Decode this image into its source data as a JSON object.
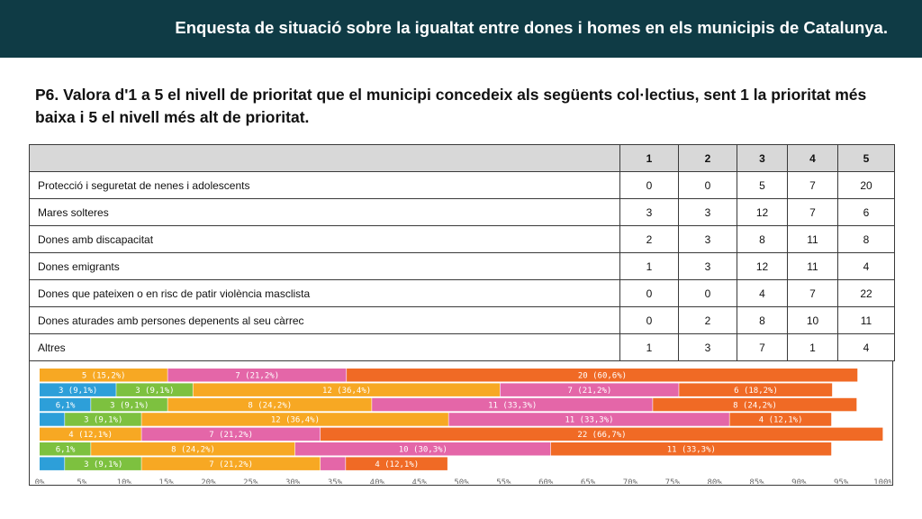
{
  "header": {
    "title": "Enquesta de situació sobre la  igualtat entre dones i homes en els municipis de Catalunya."
  },
  "question": "P6. Valora d'1 a 5 el nivell de prioritat que el municipi concedeix als següents col·lectius, sent 1 la prioritat més baixa i 5 el nivell més alt de prioritat.",
  "table": {
    "columns": [
      "1",
      "2",
      "3",
      "4",
      "5"
    ],
    "rows": [
      {
        "label": "Protecció i seguretat de nenes i adolescents",
        "values": [
          "0",
          "0",
          "5",
          "7",
          "20"
        ]
      },
      {
        "label": "Mares solteres",
        "values": [
          "3",
          "3",
          "12",
          "7",
          "6"
        ]
      },
      {
        "label": "Dones amb discapacitat",
        "values": [
          "2",
          "3",
          "8",
          "11",
          "8"
        ]
      },
      {
        "label": "Dones emigrants",
        "values": [
          "1",
          "3",
          "12",
          "11",
          "4"
        ]
      },
      {
        "label": "Dones que pateixen o en risc de patir violència masclista",
        "values": [
          "0",
          "0",
          "4",
          "7",
          "22"
        ]
      },
      {
        "label": "Dones aturades amb persones depenents al seu càrrec",
        "values": [
          "0",
          "2",
          "8",
          "10",
          "11"
        ]
      },
      {
        "label": "Altres",
        "values": [
          "1",
          "3",
          "7",
          "1",
          "4"
        ]
      }
    ]
  },
  "chart_data": {
    "type": "bar",
    "orientation": "horizontal",
    "stacked": "percent",
    "xlim": [
      0,
      100
    ],
    "x_ticks": [
      "0%",
      "5%",
      "10%",
      "15%",
      "20%",
      "25%",
      "30%",
      "35%",
      "40%",
      "45%",
      "50%",
      "55%",
      "60%",
      "65%",
      "70%",
      "75%",
      "80%",
      "85%",
      "90%",
      "95%",
      "100%"
    ],
    "colors": [
      "#2d9fd9",
      "#7dc13f",
      "#f7a823",
      "#e466a8",
      "#f06a25"
    ],
    "bars": [
      {
        "segments": [
          {
            "value": 15.2,
            "label": "5 (15,2%)"
          },
          {
            "value": 21.2,
            "label": "7 (21,2%)"
          },
          {
            "value": 60.6,
            "label": "20 (60,6%)"
          }
        ],
        "colors": [
          "#f7a823",
          "#e466a8",
          "#f06a25"
        ]
      },
      {
        "segments": [
          {
            "value": 9.1,
            "label": "3 (9,1%)"
          },
          {
            "value": 9.1,
            "label": "3 (9,1%)"
          },
          {
            "value": 36.4,
            "label": "12 (36,4%)"
          },
          {
            "value": 21.2,
            "label": "7 (21,2%)"
          },
          {
            "value": 18.2,
            "label": "6 (18,2%)"
          }
        ],
        "colors": [
          "#2d9fd9",
          "#7dc13f",
          "#f7a823",
          "#e466a8",
          "#f06a25"
        ]
      },
      {
        "segments": [
          {
            "value": 6.1,
            "label": "6,1%"
          },
          {
            "value": 9.1,
            "label": "3 (9,1%)"
          },
          {
            "value": 24.2,
            "label": "8 (24,2%)"
          },
          {
            "value": 33.3,
            "label": "11 (33,3%)"
          },
          {
            "value": 24.2,
            "label": "8 (24,2%)"
          }
        ],
        "colors": [
          "#2d9fd9",
          "#7dc13f",
          "#f7a823",
          "#e466a8",
          "#f06a25"
        ]
      },
      {
        "segments": [
          {
            "value": 3.0,
            "label": ""
          },
          {
            "value": 9.1,
            "label": "3 (9,1%)"
          },
          {
            "value": 36.4,
            "label": "12 (36,4%)"
          },
          {
            "value": 33.3,
            "label": "11 (33,3%)"
          },
          {
            "value": 12.1,
            "label": "4 (12,1%)"
          }
        ],
        "colors": [
          "#2d9fd9",
          "#7dc13f",
          "#f7a823",
          "#e466a8",
          "#f06a25"
        ]
      },
      {
        "segments": [
          {
            "value": 12.1,
            "label": "4 (12,1%)"
          },
          {
            "value": 21.2,
            "label": "7 (21,2%)"
          },
          {
            "value": 66.7,
            "label": "22 (66,7%)"
          }
        ],
        "colors": [
          "#f7a823",
          "#e466a8",
          "#f06a25"
        ]
      },
      {
        "segments": [
          {
            "value": 6.1,
            "label": "6,1%"
          },
          {
            "value": 24.2,
            "label": "8 (24,2%)"
          },
          {
            "value": 30.3,
            "label": "10 (30,3%)"
          },
          {
            "value": 33.3,
            "label": "11 (33,3%)"
          }
        ],
        "colors": [
          "#7dc13f",
          "#f7a823",
          "#e466a8",
          "#f06a25"
        ]
      },
      {
        "segments": [
          {
            "value": 3.0,
            "label": ""
          },
          {
            "value": 9.1,
            "label": "3 (9,1%)"
          },
          {
            "value": 21.2,
            "label": "7 (21,2%)"
          },
          {
            "value": 3.0,
            "label": ""
          },
          {
            "value": 12.1,
            "label": "4 (12,1%)"
          }
        ],
        "colors": [
          "#2d9fd9",
          "#7dc13f",
          "#f7a823",
          "#e466a8",
          "#f06a25"
        ]
      }
    ]
  }
}
